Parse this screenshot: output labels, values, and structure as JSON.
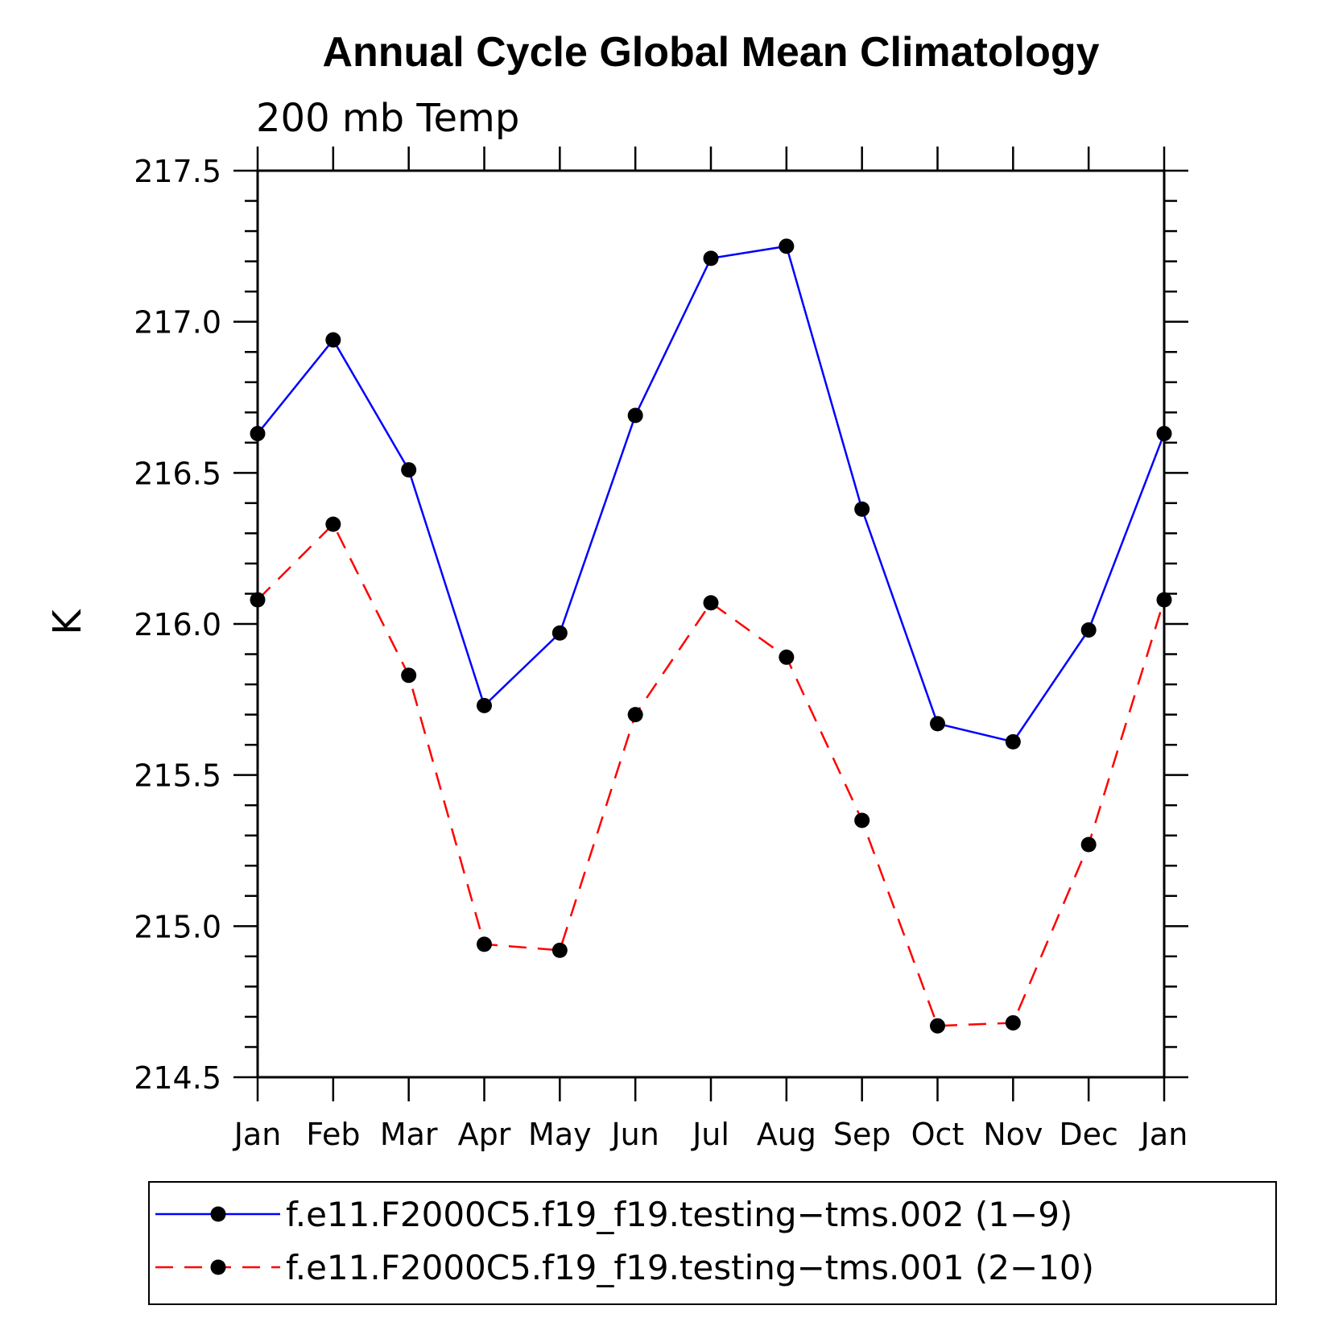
{
  "chart_data": {
    "type": "line",
    "title": "Annual Cycle Global Mean Climatology",
    "subtitle": "200 mb Temp",
    "ylabel": "K",
    "xlabel": "",
    "categories": [
      "Jan",
      "Feb",
      "Mar",
      "Apr",
      "May",
      "Jun",
      "Jul",
      "Aug",
      "Sep",
      "Oct",
      "Nov",
      "Dec",
      "Jan"
    ],
    "ylim": [
      214.5,
      217.5
    ],
    "yticks": [
      "214.5",
      "215.0",
      "215.5",
      "216.0",
      "216.5",
      "217.0",
      "217.5"
    ],
    "grid": false,
    "legend_position": "bottom",
    "series": [
      {
        "name": "f.e11.F2000C5.f19_f19.testing−tms.002 (1−9)",
        "color": "#0000ff",
        "dash": "solid",
        "values": [
          216.63,
          216.94,
          216.51,
          215.73,
          215.97,
          216.69,
          217.21,
          217.25,
          216.38,
          215.67,
          215.61,
          215.98,
          216.63
        ]
      },
      {
        "name": "f.e11.F2000C5.f19_f19.testing−tms.001 (2−10)",
        "color": "#ff0000",
        "dash": "dashed",
        "values": [
          216.08,
          216.33,
          215.83,
          214.94,
          214.92,
          215.7,
          216.07,
          215.89,
          215.35,
          214.67,
          214.68,
          215.27,
          216.08
        ]
      }
    ]
  }
}
